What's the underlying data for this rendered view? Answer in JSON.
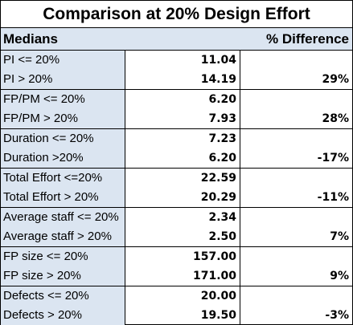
{
  "title": "Comparison at 20% Design Effort",
  "header": {
    "left": "Medians",
    "right": "% Difference"
  },
  "groups": [
    {
      "rows": [
        {
          "label": "PI <= 20%",
          "value": "11.04",
          "diff": ""
        },
        {
          "label": "PI > 20%",
          "value": "14.19",
          "diff": "29%"
        }
      ]
    },
    {
      "rows": [
        {
          "label": "FP/PM <= 20%",
          "value": "6.20",
          "diff": ""
        },
        {
          "label": "FP/PM > 20%",
          "value": "7.93",
          "diff": "28%"
        }
      ]
    },
    {
      "rows": [
        {
          "label": "Duration <= 20%",
          "value": "7.23",
          "diff": ""
        },
        {
          "label": "Duration >20%",
          "value": "6.20",
          "diff": "-17%"
        }
      ]
    },
    {
      "rows": [
        {
          "label": "Total Effort <=20%",
          "value": "22.59",
          "diff": ""
        },
        {
          "label": "Total Effort > 20%",
          "value": "20.29",
          "diff": "-11%"
        }
      ]
    },
    {
      "rows": [
        {
          "label": "Average staff <= 20%",
          "value": "2.34",
          "diff": ""
        },
        {
          "label": "Average staff > 20%",
          "value": "2.50",
          "diff": "7%"
        }
      ]
    },
    {
      "rows": [
        {
          "label": "FP size <= 20%",
          "value": "157.00",
          "diff": ""
        },
        {
          "label": "FP size > 20%",
          "value": "171.00",
          "diff": "9%"
        }
      ]
    },
    {
      "rows": [
        {
          "label": "Defects <= 20%",
          "value": "20.00",
          "diff": ""
        },
        {
          "label": "Defects > 20%",
          "value": "19.50",
          "diff": "-3%"
        }
      ]
    }
  ]
}
